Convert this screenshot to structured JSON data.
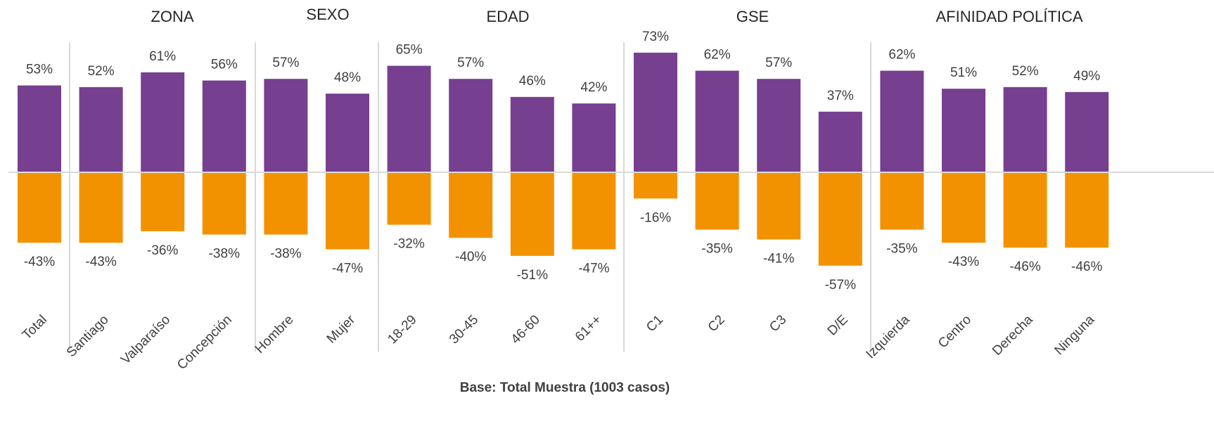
{
  "chart_data": {
    "type": "diverging_bar",
    "groups": [
      {
        "label": "ZONA"
      },
      {
        "label": "SEXO"
      },
      {
        "label": "EDAD"
      },
      {
        "label": "GSE"
      },
      {
        "label": "AFINIDAD POLÍTICA"
      }
    ],
    "categories": [
      "Total",
      "Santiago",
      "Valparaíso",
      "Concepción",
      "Hombre",
      "Mujer",
      "18-29",
      "30-45",
      "46-60",
      "61++",
      "C1",
      "C2",
      "C3",
      "D/E",
      "Izquierda",
      "Centro",
      "Derecha",
      "Ninguna"
    ],
    "series": [
      {
        "color": "#763f8f",
        "values": [
          53,
          52,
          61,
          56,
          57,
          48,
          65,
          57,
          46,
          42,
          73,
          62,
          57,
          37,
          62,
          51,
          52,
          49
        ],
        "value_labels": [
          "53%",
          "52%",
          "61%",
          "56%",
          "57%",
          "48%",
          "65%",
          "57%",
          "46%",
          "42%",
          "73%",
          "62%",
          "57%",
          "37%",
          "62%",
          "51%",
          "52%",
          "49%"
        ]
      },
      {
        "color": "#f39200",
        "values": [
          -43,
          -43,
          -36,
          -38,
          -38,
          -47,
          -32,
          -40,
          -51,
          -47,
          -16,
          -35,
          -41,
          -57,
          -35,
          -43,
          -46,
          -46
        ],
        "value_labels": [
          "-43%",
          "-43%",
          "-36%",
          "-38%",
          "-38%",
          "-47%",
          "-32%",
          "-40%",
          "-51%",
          "-47%",
          "-16%",
          "-35%",
          "-41%",
          "-57%",
          "-35%",
          "-43%",
          "-46%",
          "-46%"
        ]
      }
    ],
    "ylim": [
      -80,
      80
    ],
    "footnote": "Base: Total Muestra (1003 casos)"
  }
}
